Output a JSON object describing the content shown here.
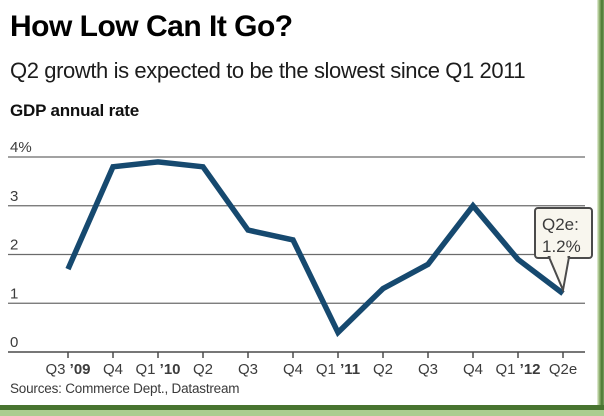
{
  "footer": {
    "sources": "Sources: Commerce Dept., Datastream"
  },
  "callout": {
    "line1": "Q2e:",
    "line2": "1.2%"
  },
  "colors": {
    "line": "#16496f",
    "grid": "#6b6b6b",
    "axis": "#4a4a4a",
    "axis_text": "#3c3c3c",
    "callout_bg": "#f8f6ee",
    "callout_border": "#4b4b4b",
    "frame_green_dark": "#48742f",
    "frame_green_light": "#abcd90"
  },
  "chart_data": {
    "type": "line",
    "title": "How Low Can It Go?",
    "subtitle": "Q2 growth is expected to be the slowest since Q1 2011",
    "ylabel": "GDP annual rate",
    "categories": [
      "Q3 ’09",
      "Q4",
      "Q1 ’10",
      "Q2",
      "Q3",
      "Q4",
      "Q1 ’11",
      "Q2",
      "Q3",
      "Q4",
      "Q1 ’12",
      "Q2e"
    ],
    "values": [
      1.7,
      3.8,
      3.9,
      3.8,
      2.5,
      2.3,
      0.4,
      1.3,
      1.8,
      3.0,
      1.9,
      1.2
    ],
    "yticks": [
      "4%",
      "3",
      "2",
      "1",
      "0"
    ],
    "ytick_values": [
      4,
      3,
      2,
      1,
      0
    ],
    "ylim": [
      0,
      4
    ],
    "grid": true,
    "legend": null,
    "annotation": "Q2e: 1.2%"
  }
}
